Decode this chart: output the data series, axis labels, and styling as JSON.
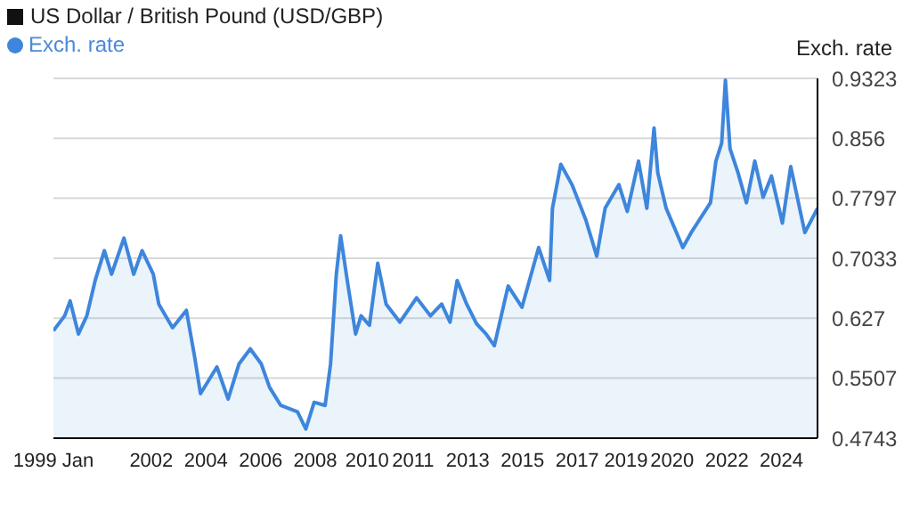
{
  "chart_data": {
    "type": "area",
    "title": "US Dollar / British Pound (USD/GBP)",
    "ylabel": "Exch. rate",
    "x": [
      1999.0,
      1999.39,
      1999.58,
      1999.87,
      2000.16,
      2000.45,
      2000.77,
      2001.02,
      2001.45,
      2001.79,
      2002.08,
      2002.47,
      2002.66,
      2003.14,
      2003.62,
      2003.91,
      2004.11,
      2004.68,
      2005.07,
      2005.45,
      2005.84,
      2006.22,
      2006.51,
      2006.9,
      2007.48,
      2007.77,
      2008.06,
      2008.44,
      2008.63,
      2008.83,
      2008.98,
      2009.21,
      2009.5,
      2009.69,
      2009.98,
      2010.27,
      2010.56,
      2011.04,
      2011.62,
      2012.1,
      2012.49,
      2012.78,
      2013.03,
      2013.36,
      2013.7,
      2014.03,
      2014.32,
      2014.8,
      2015.28,
      2015.86,
      2016.24,
      2016.34,
      2016.63,
      2017.02,
      2017.5,
      2017.88,
      2018.17,
      2018.65,
      2018.94,
      2019.33,
      2019.62,
      2019.87,
      2020.0,
      2020.29,
      2020.87,
      2021.16,
      2021.83,
      2022.02,
      2022.22,
      2022.35,
      2022.51,
      2022.79,
      2023.08,
      2023.37,
      2023.66,
      2023.95,
      2024.33,
      2024.62,
      2025.11,
      2025.55
    ],
    "series": [
      {
        "name": "Exch. rate",
        "color": "#3d86dc",
        "values": [
          0.611,
          0.63,
          0.649,
          0.607,
          0.63,
          0.675,
          0.713,
          0.683,
          0.729,
          0.683,
          0.713,
          0.683,
          0.645,
          0.615,
          0.637,
          0.577,
          0.531,
          0.565,
          0.524,
          0.569,
          0.588,
          0.569,
          0.539,
          0.516,
          0.508,
          0.486,
          0.52,
          0.516,
          0.569,
          0.683,
          0.732,
          0.675,
          0.607,
          0.63,
          0.618,
          0.697,
          0.645,
          0.622,
          0.653,
          0.63,
          0.645,
          0.622,
          0.675,
          0.645,
          0.62,
          0.607,
          0.592,
          0.668,
          0.641,
          0.717,
          0.675,
          0.767,
          0.823,
          0.797,
          0.752,
          0.706,
          0.767,
          0.797,
          0.763,
          0.827,
          0.767,
          0.869,
          0.812,
          0.767,
          0.717,
          0.736,
          0.774,
          0.827,
          0.85,
          0.93,
          0.843,
          0.812,
          0.774,
          0.827,
          0.781,
          0.808,
          0.748,
          0.82,
          0.736,
          0.767
        ]
      }
    ],
    "xlim": [
      1999.0,
      2025.55
    ],
    "xticks": [
      {
        "value": 1999,
        "label": "1999 Jan"
      },
      {
        "value": 2002.4,
        "label": "2002"
      },
      {
        "value": 2004.3,
        "label": "2004"
      },
      {
        "value": 2006.2,
        "label": "2006"
      },
      {
        "value": 2008.1,
        "label": "2008"
      },
      {
        "value": 2009.9,
        "label": "2010"
      },
      {
        "value": 2011.5,
        "label": "2011"
      },
      {
        "value": 2013.4,
        "label": "2013"
      },
      {
        "value": 2015.3,
        "label": "2015"
      },
      {
        "value": 2017.2,
        "label": "2017"
      },
      {
        "value": 2018.9,
        "label": "2019"
      },
      {
        "value": 2020.5,
        "label": "2020"
      },
      {
        "value": 2022.4,
        "label": "2022"
      },
      {
        "value": 2024.3,
        "label": "2024"
      }
    ],
    "ylim": [
      0.4743,
      0.9323
    ],
    "yticks": [
      0.4743,
      0.5507,
      0.627,
      0.7033,
      0.7797,
      0.856,
      0.9323
    ],
    "grid": "y",
    "legend": "top left"
  }
}
